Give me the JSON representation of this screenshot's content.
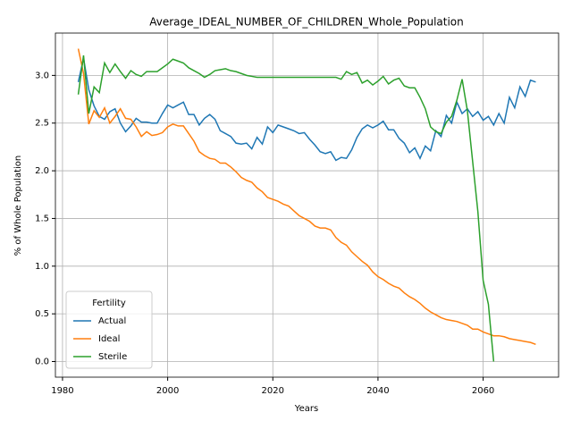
{
  "chart_data": {
    "type": "line",
    "title": "Average_IDEAL_NUMBER_OF_CHILDREN_Whole_Population",
    "xlabel": "Years",
    "ylabel": "% of Whole Population",
    "legend_title": "Fertility",
    "legend": "lower left",
    "grid": true,
    "xlim": [
      1978.65,
      2074.35
    ],
    "ylim": [
      -0.164,
      3.444
    ],
    "xticks": [
      1980,
      2000,
      2020,
      2040,
      2060
    ],
    "yticks": [
      {
        "value": 0,
        "label": "0.0"
      },
      0.5,
      {
        "value": 1,
        "label": "1.0"
      },
      1.5,
      {
        "value": 2,
        "label": "2.0"
      },
      2.5,
      {
        "value": 3,
        "label": "3.0"
      }
    ],
    "x": [
      1983,
      1984,
      1985,
      1986,
      1987,
      1988,
      1989,
      1990,
      1991,
      1992,
      1993,
      1994,
      1995,
      1996,
      1997,
      1998,
      1999,
      2000,
      2001,
      2002,
      2003,
      2004,
      2005,
      2006,
      2007,
      2008,
      2009,
      2010,
      2011,
      2012,
      2013,
      2014,
      2015,
      2016,
      2017,
      2018,
      2019,
      2020,
      2021,
      2022,
      2023,
      2024,
      2025,
      2026,
      2027,
      2028,
      2029,
      2030,
      2031,
      2032,
      2033,
      2034,
      2035,
      2036,
      2037,
      2038,
      2039,
      2040,
      2041,
      2042,
      2043,
      2044,
      2045,
      2046,
      2047,
      2048,
      2049,
      2050,
      2051,
      2052,
      2053,
      2054,
      2055,
      2056,
      2057,
      2058,
      2059,
      2060,
      2061,
      2062,
      2063,
      2064,
      2065,
      2066,
      2067,
      2068,
      2069,
      2070
    ],
    "series": [
      {
        "name": "Actual",
        "color": "#1f77b4",
        "values": [
          2.93,
          3.18,
          2.85,
          2.68,
          2.57,
          2.54,
          2.62,
          2.65,
          2.5,
          2.41,
          2.47,
          2.55,
          2.51,
          2.51,
          2.5,
          2.5,
          2.6,
          2.69,
          2.66,
          2.69,
          2.72,
          2.59,
          2.59,
          2.48,
          2.55,
          2.59,
          2.54,
          2.42,
          2.39,
          2.36,
          2.29,
          2.28,
          2.29,
          2.23,
          2.35,
          2.28,
          2.46,
          2.4,
          2.48,
          2.46,
          2.44,
          2.42,
          2.39,
          2.4,
          2.33,
          2.27,
          2.2,
          2.18,
          2.2,
          2.11,
          2.14,
          2.13,
          2.22,
          2.35,
          2.44,
          2.48,
          2.45,
          2.48,
          2.52,
          2.43,
          2.43,
          2.34,
          2.29,
          2.19,
          2.24,
          2.13,
          2.26,
          2.21,
          2.42,
          2.36,
          2.58,
          2.5,
          2.72,
          2.6,
          2.65,
          2.57,
          2.62,
          2.53,
          2.57,
          2.48,
          2.6,
          2.5,
          2.77,
          2.66,
          2.88,
          2.78,
          2.95,
          2.93
        ]
      },
      {
        "name": "Ideal",
        "color": "#ff7f0e",
        "values": [
          3.28,
          3.02,
          2.49,
          2.63,
          2.56,
          2.66,
          2.5,
          2.57,
          2.65,
          2.55,
          2.54,
          2.46,
          2.36,
          2.41,
          2.37,
          2.38,
          2.4,
          2.46,
          2.49,
          2.47,
          2.47,
          2.39,
          2.31,
          2.2,
          2.16,
          2.13,
          2.12,
          2.08,
          2.08,
          2.04,
          1.99,
          1.93,
          1.9,
          1.88,
          1.82,
          1.78,
          1.72,
          1.7,
          1.68,
          1.65,
          1.63,
          1.58,
          1.53,
          1.5,
          1.47,
          1.42,
          1.4,
          1.4,
          1.38,
          1.3,
          1.25,
          1.22,
          1.15,
          1.1,
          1.05,
          1.01,
          0.94,
          0.89,
          0.86,
          0.82,
          0.79,
          0.77,
          0.72,
          0.68,
          0.65,
          0.61,
          0.56,
          0.52,
          0.49,
          0.46,
          0.44,
          0.43,
          0.42,
          0.4,
          0.38,
          0.34,
          0.34,
          0.31,
          0.29,
          0.27,
          0.27,
          0.26,
          0.24,
          0.23,
          0.22,
          0.21,
          0.2,
          0.18
        ]
      },
      {
        "name": "Sterile",
        "color": "#2ca02c",
        "values": [
          2.8,
          3.21,
          2.6,
          2.88,
          2.82,
          3.13,
          3.03,
          3.12,
          3.04,
          2.97,
          3.05,
          3.01,
          2.99,
          3.04,
          3.04,
          3.04,
          3.08,
          3.12,
          3.17,
          3.15,
          3.13,
          3.08,
          3.05,
          3.02,
          2.98,
          3.01,
          3.05,
          3.06,
          3.07,
          3.05,
          3.04,
          3.02,
          3.0,
          2.99,
          2.98,
          2.98,
          2.98,
          2.98,
          2.98,
          2.98,
          2.98,
          2.98,
          2.98,
          2.98,
          2.98,
          2.98,
          2.98,
          2.98,
          2.98,
          2.98,
          2.96,
          3.04,
          3.01,
          3.03,
          2.92,
          2.95,
          2.9,
          2.94,
          2.99,
          2.91,
          2.95,
          2.97,
          2.89,
          2.87,
          2.87,
          2.77,
          2.65,
          2.46,
          2.41,
          2.39,
          2.51,
          2.57,
          2.74,
          2.96,
          2.63,
          2.1,
          1.57,
          0.85,
          0.6,
          0.0,
          null,
          null,
          null,
          null,
          null,
          null,
          null,
          null
        ]
      }
    ]
  }
}
